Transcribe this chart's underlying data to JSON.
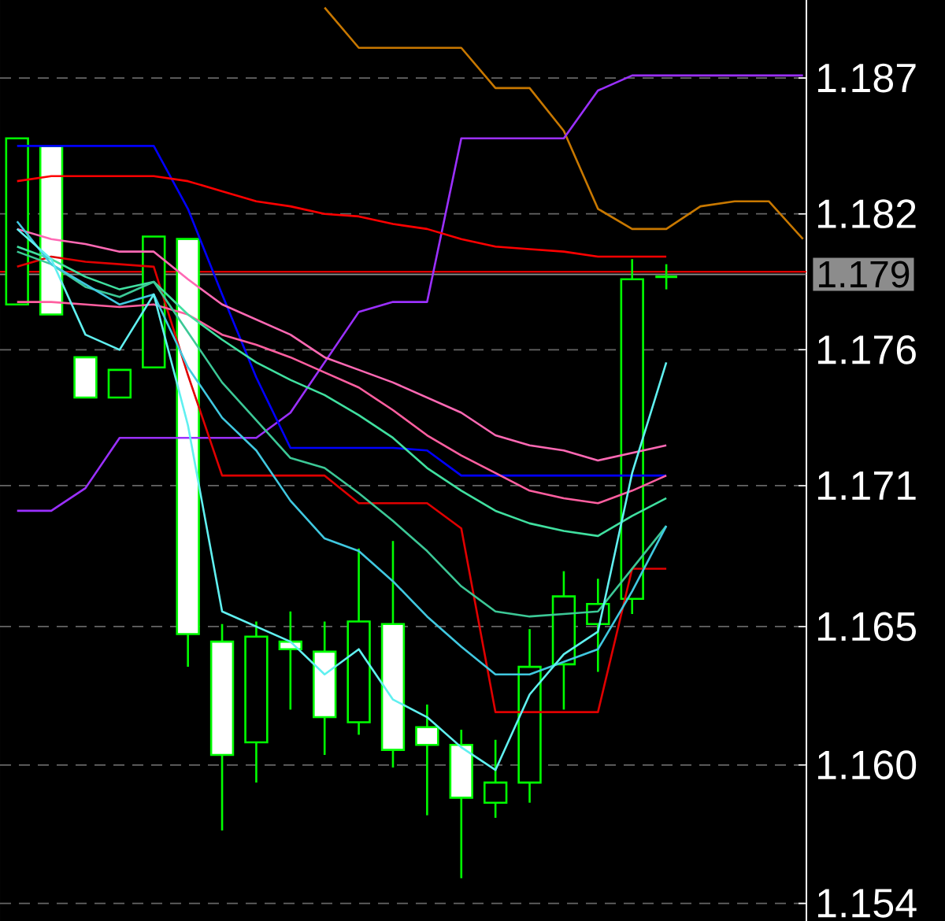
{
  "chart_data": {
    "type": "candlestick",
    "color": "#00ff00",
    "categories": [
      null,
      null,
      null,
      null,
      null,
      null,
      null,
      null,
      null,
      null,
      null,
      null,
      null,
      null,
      null,
      null,
      null,
      null,
      null,
      null,
      null,
      null,
      null,
      null
    ],
    "ohlc": [
      [
        1.1782,
        1.1848,
        1.1782,
        1.1848
      ],
      [
        1.1845,
        1.1845,
        1.1778,
        1.1778
      ],
      [
        1.1761,
        1.1761,
        1.1745,
        1.1745
      ],
      [
        1.1745,
        1.1756,
        1.1745,
        1.1756
      ],
      [
        1.1757,
        1.1809,
        1.1757,
        1.1809
      ],
      [
        1.1808,
        1.1808,
        1.1638,
        1.1651
      ],
      [
        1.1648,
        1.1655,
        1.1573,
        1.1603
      ],
      [
        1.1608,
        1.1656,
        1.1592,
        1.165
      ],
      [
        1.1648,
        1.166,
        1.1621,
        1.1645
      ],
      [
        1.1644,
        1.1656,
        1.1603,
        1.1618
      ],
      [
        1.1616,
        1.1685,
        1.1611,
        1.1656
      ],
      [
        1.1655,
        1.1688,
        1.1598,
        1.1605
      ],
      [
        1.1614,
        1.1623,
        1.1579,
        1.1607
      ],
      [
        1.1607,
        1.1613,
        1.1554,
        1.1586
      ],
      [
        1.1584,
        1.1609,
        1.1578,
        1.1592
      ],
      [
        1.1592,
        1.1653,
        1.1584,
        1.1638
      ],
      [
        1.1639,
        1.1676,
        1.1621,
        1.1666
      ],
      [
        1.1655,
        1.1673,
        1.1636,
        1.1663
      ],
      [
        1.1665,
        1.18,
        1.1659,
        1.1792
      ],
      [
        1.1793,
        1.1798,
        1.1788,
        1.1793
      ],
      null,
      null,
      null,
      null
    ],
    "series": [
      {
        "type": "line",
        "color": "#c87800",
        "values": [
          null,
          null,
          null,
          null,
          null,
          null,
          null,
          null,
          null,
          1.19,
          1.1884,
          1.1884,
          1.1884,
          1.1884,
          1.1868,
          1.1868,
          1.1851,
          1.182,
          1.1812,
          1.1812,
          1.1821,
          1.1823,
          1.1823,
          1.1808
        ]
      },
      {
        "type": "line",
        "color": "#9b30ff",
        "values": [
          1.17,
          1.17,
          1.1709,
          1.1729,
          1.1729,
          1.1729,
          1.1729,
          1.1729,
          1.1739,
          1.1759,
          1.1779,
          1.1783,
          1.1783,
          1.1848,
          1.1848,
          1.1848,
          1.1848,
          1.1867,
          1.1873,
          1.1873,
          1.1873,
          1.1873,
          1.1873,
          1.1873
        ]
      },
      {
        "type": "line",
        "color": "#0000ff",
        "values": [
          1.1845,
          1.1845,
          1.1845,
          1.1845,
          1.1845,
          1.182,
          1.1786,
          1.1753,
          1.1725,
          1.1725,
          1.1725,
          1.1725,
          1.1724,
          1.1714,
          1.1714,
          1.1714,
          1.1714,
          1.1714,
          1.1714,
          1.1714,
          null,
          null,
          null,
          null
        ]
      },
      {
        "type": "line",
        "color": "#e00000",
        "values": [
          1.1797,
          1.1801,
          1.1799,
          1.1798,
          1.1797,
          1.1754,
          1.1714,
          1.1714,
          1.1714,
          1.1714,
          1.1703,
          1.1703,
          1.1703,
          1.1693,
          1.162,
          1.162,
          1.162,
          1.162,
          1.1677,
          1.1677,
          null,
          null,
          null,
          null
        ]
      },
      {
        "type": "line",
        "color": "#ff69b4",
        "values": [
          1.1812,
          1.1808,
          1.1806,
          1.1803,
          1.1803,
          1.1792,
          1.1782,
          1.1776,
          1.177,
          1.1761,
          1.1756,
          1.1751,
          1.1745,
          1.1739,
          1.173,
          1.1726,
          1.1724,
          1.172,
          1.1723,
          1.1726,
          null,
          null,
          null,
          null
        ]
      },
      {
        "type": "line",
        "color": "#ff5fa0",
        "values": [
          1.1783,
          1.1783,
          1.1782,
          1.1781,
          1.1782,
          1.1778,
          1.177,
          1.1766,
          1.1761,
          1.1755,
          1.1749,
          1.174,
          1.173,
          1.1722,
          1.1715,
          1.1708,
          1.1705,
          1.1703,
          1.1708,
          1.1714,
          null,
          null,
          null,
          null
        ]
      },
      {
        "type": "line",
        "color": "#40e0a0",
        "values": [
          1.1805,
          1.18,
          1.1793,
          1.1788,
          1.1791,
          1.1778,
          1.1768,
          1.1759,
          1.1752,
          1.1746,
          1.1738,
          1.1729,
          1.1717,
          1.1708,
          1.17,
          1.1695,
          1.1692,
          1.169,
          1.1698,
          1.1705,
          null,
          null,
          null,
          null
        ]
      },
      {
        "type": "line",
        "color": "#3cc896",
        "values": [
          1.1803,
          1.1798,
          1.1789,
          1.1785,
          1.1791,
          1.1771,
          1.1751,
          1.1736,
          1.1721,
          1.1717,
          1.1707,
          1.1696,
          1.1684,
          1.167,
          1.166,
          1.1658,
          1.1659,
          1.166,
          1.1677,
          1.1694,
          null,
          null,
          null,
          null
        ]
      },
      {
        "type": "line",
        "color": "#40c8e0",
        "values": [
          1.1815,
          1.1798,
          1.179,
          1.1782,
          1.1786,
          1.1757,
          1.1737,
          1.1724,
          1.1704,
          1.1689,
          1.1684,
          1.1672,
          1.1658,
          1.1646,
          1.1635,
          1.1635,
          1.164,
          1.1645,
          1.1668,
          1.1694,
          null,
          null,
          null,
          null
        ]
      },
      {
        "type": "line",
        "color": "#60f0f0",
        "values": [
          1.1812,
          1.18,
          1.177,
          1.1764,
          1.1786,
          1.1734,
          1.166,
          1.1654,
          1.1648,
          1.1635,
          1.1645,
          1.1625,
          1.1618,
          1.1606,
          1.1597,
          1.1627,
          1.1643,
          1.1652,
          1.1715,
          1.1759,
          null,
          null,
          null,
          null
        ]
      },
      {
        "type": "line",
        "color": "#ff0000",
        "values": [
          1.1831,
          1.1833,
          1.1833,
          1.1833,
          1.1833,
          1.1831,
          1.1827,
          1.1823,
          1.1821,
          1.1818,
          1.1817,
          1.1814,
          1.1812,
          1.1808,
          1.1805,
          1.1804,
          1.1803,
          1.1801,
          1.1801,
          1.1801,
          null,
          null,
          null,
          null
        ]
      }
    ],
    "ylim": [
      1.1537,
      1.1903
    ],
    "yticks": [
      {
        "value": 1.1872,
        "label": "1.187"
      },
      {
        "value": 1.1818,
        "label": "1.182"
      },
      {
        "value": 1.1764,
        "label": "1.176"
      },
      {
        "value": 1.171,
        "label": "1.171"
      },
      {
        "value": 1.1654,
        "label": "1.165"
      },
      {
        "value": 1.1599,
        "label": "1.160"
      },
      {
        "value": 1.1544,
        "label": "1.154"
      }
    ],
    "grid": "y",
    "ref_lines": [
      {
        "axis": "y",
        "value": 1.1795,
        "color": "#ff0000"
      },
      {
        "axis": "y",
        "value": 1.1794,
        "color": "#8c8c8c",
        "label": "1.179"
      }
    ]
  }
}
